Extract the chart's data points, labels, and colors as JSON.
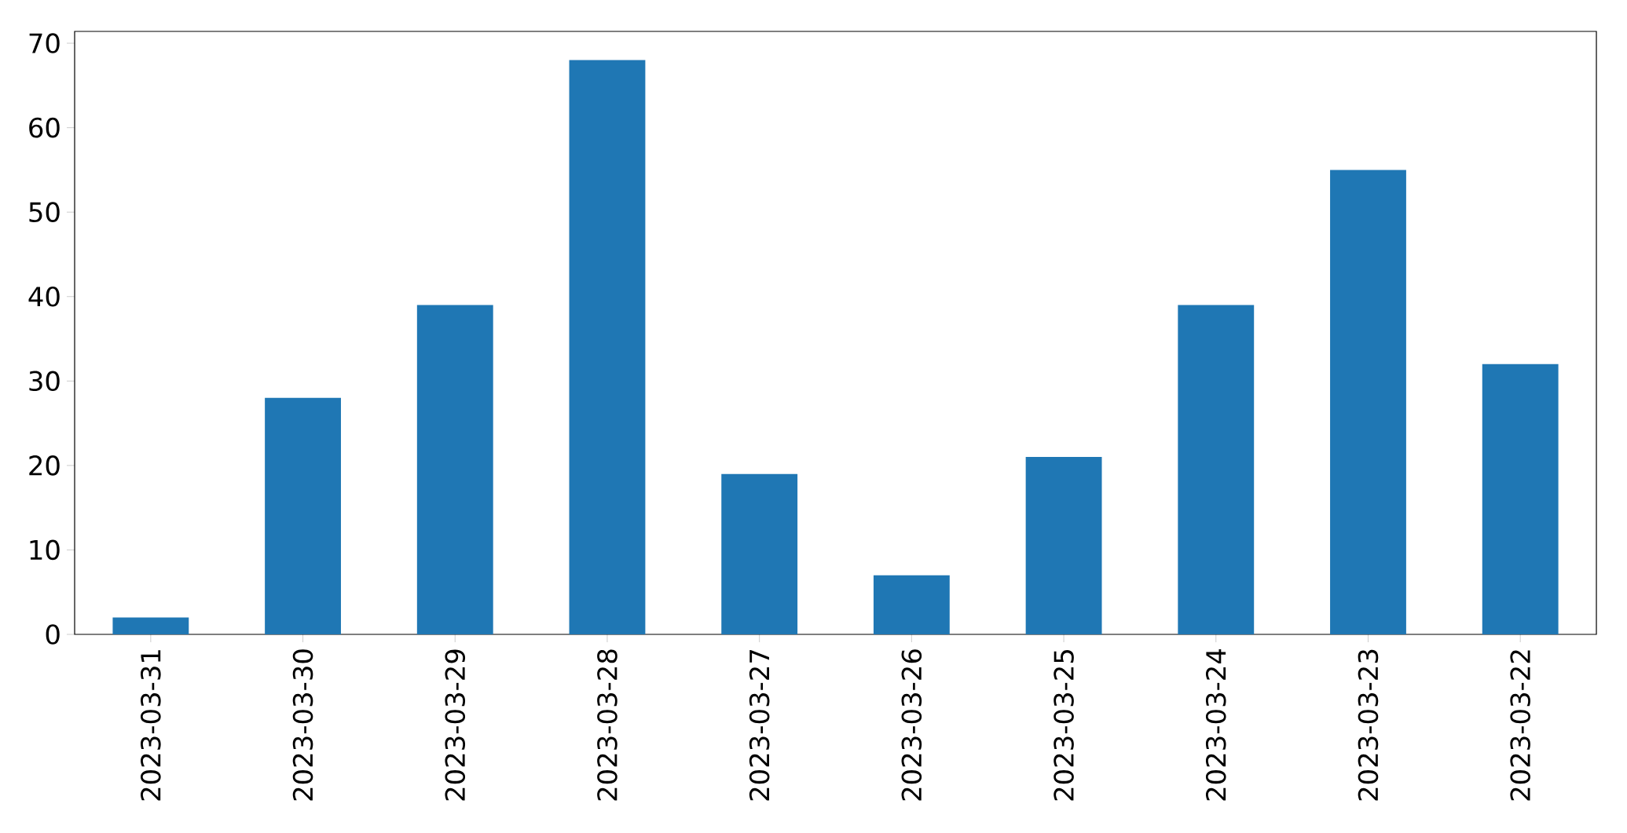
{
  "chart_data": {
    "type": "bar",
    "categories": [
      "2023-03-31",
      "2023-03-30",
      "2023-03-29",
      "2023-03-28",
      "2023-03-27",
      "2023-03-26",
      "2023-03-25",
      "2023-03-24",
      "2023-03-23",
      "2023-03-22"
    ],
    "values": [
      2,
      28,
      39,
      68,
      19,
      7,
      21,
      39,
      55,
      32
    ],
    "color": "#1f77b4",
    "ylim": [
      0,
      71.4
    ],
    "yticks": [
      0,
      10,
      20,
      30,
      40,
      50,
      60,
      70
    ]
  }
}
